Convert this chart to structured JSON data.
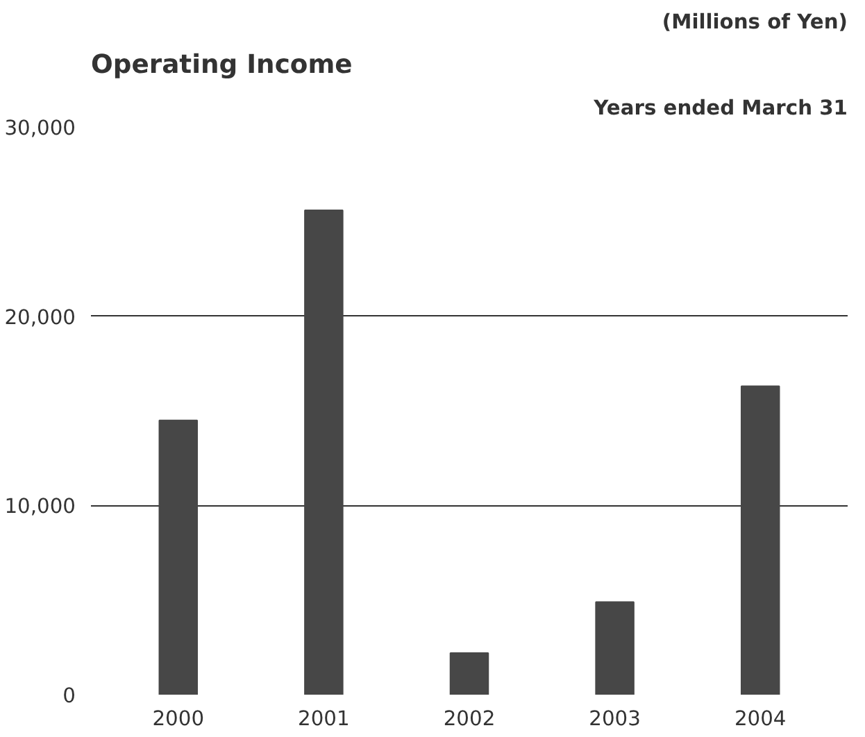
{
  "chart_data": {
    "type": "bar",
    "title": "Operating Income",
    "subtitle": "Years ended March 31",
    "ylabel": "(Millions of Yen)",
    "categories": [
      "2000",
      "2001",
      "2002",
      "2003",
      "2004"
    ],
    "values": [
      14500,
      25600,
      2200,
      4900,
      16300
    ],
    "color": "#474747",
    "ylim": [
      0,
      30000
    ],
    "yticks": [
      {
        "value": 0,
        "label": "0"
      },
      {
        "value": 10000,
        "label": "10,000"
      },
      {
        "value": 20000,
        "label": "20,000"
      },
      {
        "value": 30000,
        "label": "30,000"
      }
    ],
    "grid": "y"
  }
}
